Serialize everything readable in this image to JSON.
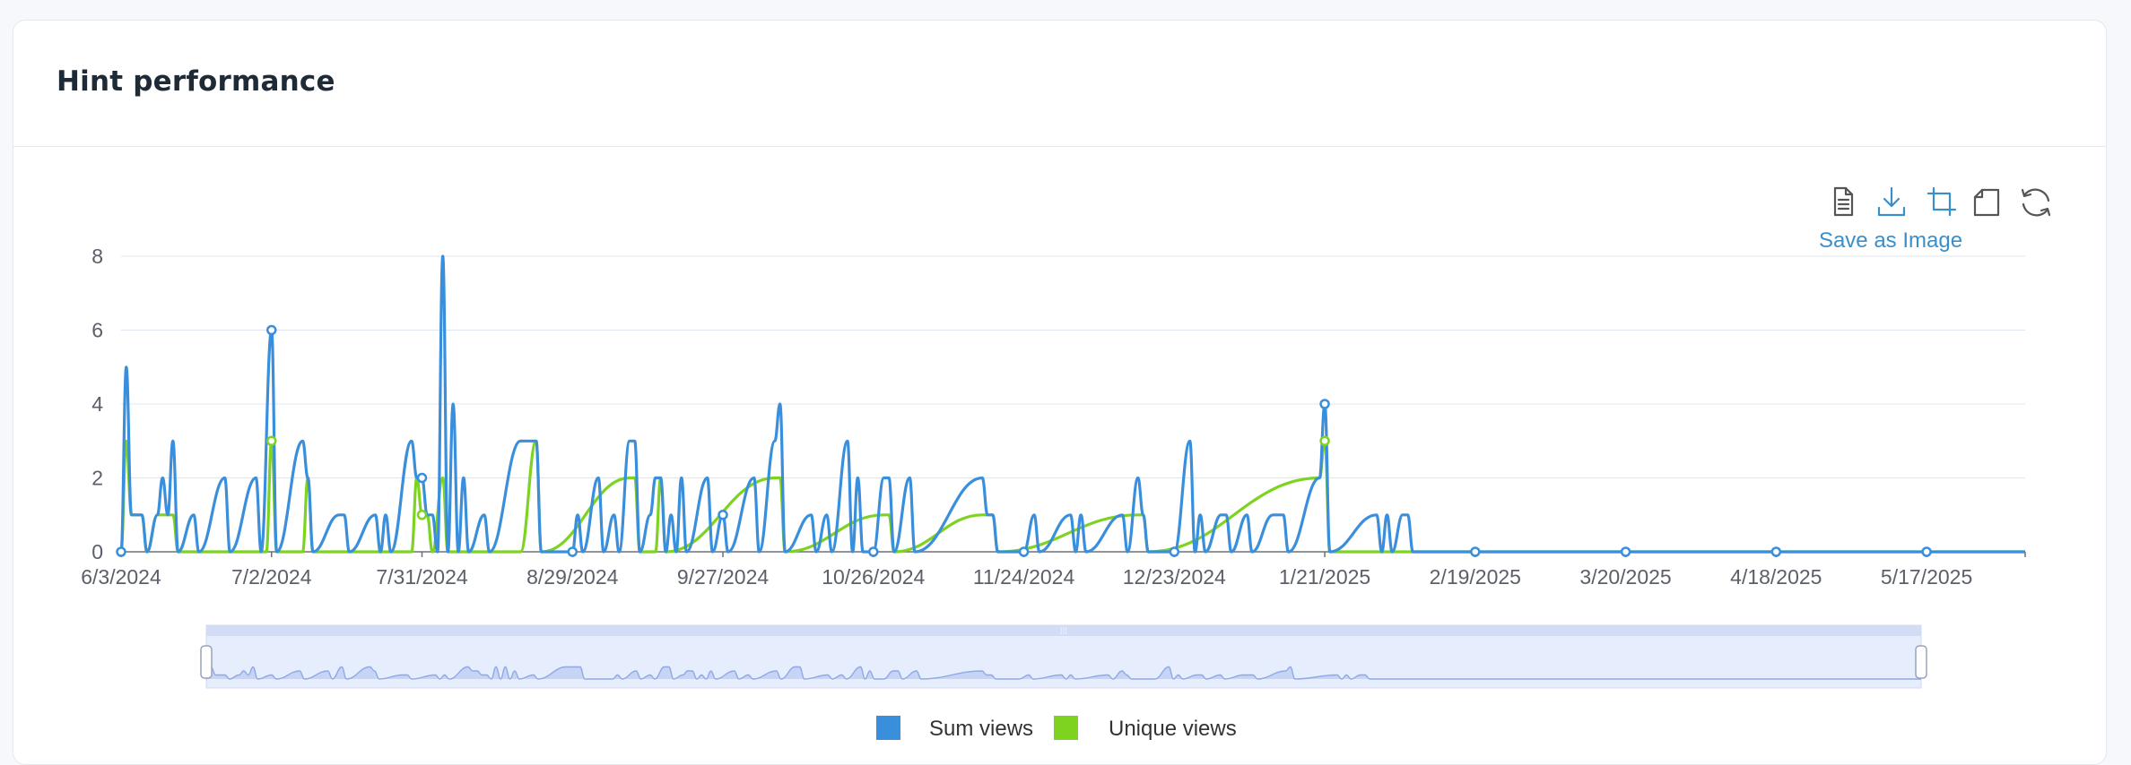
{
  "card": {
    "title": "Hint performance"
  },
  "toolbox": {
    "save_label": "Save as Image",
    "icons": [
      "data-view-icon",
      "download-icon",
      "zoom-select-icon",
      "zoom-back-icon",
      "restore-icon"
    ]
  },
  "colors": {
    "sum": "#3a8fdc",
    "unique": "#7ed321",
    "grid": "#e0e6f1"
  },
  "chart_data": {
    "type": "line",
    "title": "",
    "xlabel": "",
    "ylabel": "",
    "x_range": [
      "2024-06-03",
      "2025-06-05"
    ],
    "ylim": [
      0,
      8
    ],
    "yticks": [
      0,
      2,
      4,
      6,
      8
    ],
    "xticks": [
      {
        "date": "2024-06-03",
        "label": "6/3/2024"
      },
      {
        "date": "2024-07-02",
        "label": "7/2/2024"
      },
      {
        "date": "2024-07-31",
        "label": "7/31/2024"
      },
      {
        "date": "2024-08-29",
        "label": "8/29/2024"
      },
      {
        "date": "2024-09-27",
        "label": "9/27/2024"
      },
      {
        "date": "2024-10-26",
        "label": "10/26/2024"
      },
      {
        "date": "2024-11-24",
        "label": "11/24/2024"
      },
      {
        "date": "2024-12-23",
        "label": "12/23/2024"
      },
      {
        "date": "2025-01-21",
        "label": "1/21/2025"
      },
      {
        "date": "2025-02-19",
        "label": "2/19/2025"
      },
      {
        "date": "2025-03-20",
        "label": "3/20/2025"
      },
      {
        "date": "2025-04-18",
        "label": "4/18/2025"
      },
      {
        "date": "2025-05-17",
        "label": "5/17/2025"
      }
    ],
    "grid": true,
    "legend": "bottom-center",
    "series": [
      {
        "name": "Sum views",
        "points": [
          [
            "2024-06-03",
            0
          ],
          [
            "2024-06-04",
            5
          ],
          [
            "2024-06-05",
            1
          ],
          [
            "2024-06-06",
            1
          ],
          [
            "2024-06-07",
            1
          ],
          [
            "2024-06-08",
            0
          ],
          [
            "2024-06-10",
            1
          ],
          [
            "2024-06-11",
            2
          ],
          [
            "2024-06-12",
            1
          ],
          [
            "2024-06-13",
            3
          ],
          [
            "2024-06-14",
            0
          ],
          [
            "2024-06-17",
            1
          ],
          [
            "2024-06-18",
            0
          ],
          [
            "2024-06-23",
            2
          ],
          [
            "2024-06-24",
            0
          ],
          [
            "2024-06-29",
            2
          ],
          [
            "2024-06-30",
            0
          ],
          [
            "2024-07-02",
            6
          ],
          [
            "2024-07-03",
            0
          ],
          [
            "2024-07-08",
            3
          ],
          [
            "2024-07-09",
            2
          ],
          [
            "2024-07-10",
            0
          ],
          [
            "2024-07-15",
            1
          ],
          [
            "2024-07-16",
            1
          ],
          [
            "2024-07-17",
            0
          ],
          [
            "2024-07-22",
            1
          ],
          [
            "2024-07-23",
            0
          ],
          [
            "2024-07-24",
            1
          ],
          [
            "2024-07-25",
            0
          ],
          [
            "2024-07-29",
            3
          ],
          [
            "2024-07-30",
            2
          ],
          [
            "2024-07-31",
            2
          ],
          [
            "2024-08-01",
            1
          ],
          [
            "2024-08-02",
            1
          ],
          [
            "2024-08-03",
            0
          ],
          [
            "2024-08-04",
            8
          ],
          [
            "2024-08-05",
            0
          ],
          [
            "2024-08-06",
            4
          ],
          [
            "2024-08-07",
            0
          ],
          [
            "2024-08-08",
            2
          ],
          [
            "2024-08-09",
            0
          ],
          [
            "2024-08-12",
            1
          ],
          [
            "2024-08-13",
            0
          ],
          [
            "2024-08-19",
            3
          ],
          [
            "2024-08-20",
            3
          ],
          [
            "2024-08-21",
            3
          ],
          [
            "2024-08-22",
            3
          ],
          [
            "2024-08-23",
            0
          ],
          [
            "2024-08-29",
            0
          ],
          [
            "2024-08-30",
            1
          ],
          [
            "2024-08-31",
            0
          ],
          [
            "2024-09-03",
            2
          ],
          [
            "2024-09-04",
            0
          ],
          [
            "2024-09-06",
            1
          ],
          [
            "2024-09-07",
            0
          ],
          [
            "2024-09-09",
            3
          ],
          [
            "2024-09-10",
            3
          ],
          [
            "2024-09-11",
            0
          ],
          [
            "2024-09-13",
            1
          ],
          [
            "2024-09-14",
            2
          ],
          [
            "2024-09-15",
            2
          ],
          [
            "2024-09-16",
            0
          ],
          [
            "2024-09-17",
            1
          ],
          [
            "2024-09-18",
            0
          ],
          [
            "2024-09-19",
            2
          ],
          [
            "2024-09-20",
            0
          ],
          [
            "2024-09-24",
            2
          ],
          [
            "2024-09-25",
            0
          ],
          [
            "2024-09-27",
            1
          ],
          [
            "2024-09-28",
            0
          ],
          [
            "2024-10-03",
            2
          ],
          [
            "2024-10-04",
            0
          ],
          [
            "2024-10-07",
            3
          ],
          [
            "2024-10-08",
            4
          ],
          [
            "2024-10-09",
            0
          ],
          [
            "2024-10-14",
            1
          ],
          [
            "2024-10-15",
            0
          ],
          [
            "2024-10-17",
            1
          ],
          [
            "2024-10-18",
            0
          ],
          [
            "2024-10-21",
            3
          ],
          [
            "2024-10-22",
            0
          ],
          [
            "2024-10-23",
            2
          ],
          [
            "2024-10-24",
            0
          ],
          [
            "2024-10-26",
            0
          ],
          [
            "2024-10-28",
            2
          ],
          [
            "2024-10-29",
            2
          ],
          [
            "2024-10-30",
            0
          ],
          [
            "2024-11-02",
            2
          ],
          [
            "2024-11-03",
            0
          ],
          [
            "2024-11-16",
            2
          ],
          [
            "2024-11-17",
            1
          ],
          [
            "2024-11-18",
            1
          ],
          [
            "2024-11-19",
            0
          ],
          [
            "2024-11-24",
            0
          ],
          [
            "2024-11-26",
            1
          ],
          [
            "2024-11-27",
            0
          ],
          [
            "2024-12-03",
            1
          ],
          [
            "2024-12-04",
            0
          ],
          [
            "2024-12-05",
            1
          ],
          [
            "2024-12-06",
            0
          ],
          [
            "2024-12-13",
            1
          ],
          [
            "2024-12-14",
            0
          ],
          [
            "2024-12-16",
            2
          ],
          [
            "2024-12-17",
            1
          ],
          [
            "2024-12-18",
            0
          ],
          [
            "2024-12-23",
            0
          ],
          [
            "2024-12-26",
            3
          ],
          [
            "2024-12-27",
            0
          ],
          [
            "2024-12-28",
            1
          ],
          [
            "2024-12-29",
            0
          ],
          [
            "2025-01-01",
            1
          ],
          [
            "2025-01-02",
            1
          ],
          [
            "2025-01-03",
            0
          ],
          [
            "2025-01-06",
            1
          ],
          [
            "2025-01-07",
            0
          ],
          [
            "2025-01-11",
            1
          ],
          [
            "2025-01-12",
            1
          ],
          [
            "2025-01-13",
            1
          ],
          [
            "2025-01-14",
            0
          ],
          [
            "2025-01-20",
            2
          ],
          [
            "2025-01-21",
            4
          ],
          [
            "2025-01-22",
            0
          ],
          [
            "2025-01-31",
            1
          ],
          [
            "2025-02-01",
            0
          ],
          [
            "2025-02-02",
            1
          ],
          [
            "2025-02-03",
            0
          ],
          [
            "2025-02-05",
            1
          ],
          [
            "2025-02-06",
            1
          ],
          [
            "2025-02-07",
            0
          ],
          [
            "2025-02-19",
            0
          ],
          [
            "2025-03-20",
            0
          ],
          [
            "2025-04-18",
            0
          ],
          [
            "2025-05-17",
            0
          ],
          [
            "2025-06-05",
            0
          ]
        ]
      },
      {
        "name": "Unique views",
        "points": [
          [
            "2024-06-03",
            0
          ],
          [
            "2024-06-04",
            3
          ],
          [
            "2024-06-05",
            1
          ],
          [
            "2024-06-07",
            1
          ],
          [
            "2024-06-08",
            0
          ],
          [
            "2024-06-10",
            1
          ],
          [
            "2024-06-13",
            1
          ],
          [
            "2024-06-14",
            0
          ],
          [
            "2024-07-01",
            0
          ],
          [
            "2024-07-02",
            3
          ],
          [
            "2024-07-03",
            0
          ],
          [
            "2024-07-08",
            0
          ],
          [
            "2024-07-09",
            2
          ],
          [
            "2024-07-10",
            0
          ],
          [
            "2024-07-29",
            0
          ],
          [
            "2024-07-30",
            2
          ],
          [
            "2024-07-31",
            1
          ],
          [
            "2024-08-01",
            1
          ],
          [
            "2024-08-02",
            0
          ],
          [
            "2024-08-04",
            2
          ],
          [
            "2024-08-05",
            0
          ],
          [
            "2024-08-19",
            0
          ],
          [
            "2024-08-22",
            3
          ],
          [
            "2024-08-23",
            0
          ],
          [
            "2024-09-09",
            2
          ],
          [
            "2024-09-10",
            2
          ],
          [
            "2024-09-11",
            0
          ],
          [
            "2024-09-14",
            0
          ],
          [
            "2024-09-15",
            2
          ],
          [
            "2024-09-16",
            0
          ],
          [
            "2024-10-07",
            2
          ],
          [
            "2024-10-08",
            2
          ],
          [
            "2024-10-09",
            0
          ],
          [
            "2024-10-28",
            1
          ],
          [
            "2024-10-29",
            1
          ],
          [
            "2024-10-30",
            0
          ],
          [
            "2024-11-16",
            1
          ],
          [
            "2024-11-17",
            1
          ],
          [
            "2024-11-18",
            1
          ],
          [
            "2024-11-19",
            0
          ],
          [
            "2024-12-16",
            1
          ],
          [
            "2024-12-17",
            1
          ],
          [
            "2024-12-18",
            0
          ],
          [
            "2025-01-20",
            2
          ],
          [
            "2025-01-21",
            3
          ],
          [
            "2025-01-22",
            0
          ],
          [
            "2025-06-05",
            0
          ]
        ]
      }
    ],
    "markers": [
      "2024-06-03",
      "2024-07-02",
      "2024-07-31",
      "2024-08-29",
      "2024-09-27",
      "2024-10-26",
      "2024-11-24",
      "2024-12-23",
      "2025-01-21",
      "2025-02-19",
      "2025-03-20",
      "2025-04-18",
      "2025-05-17"
    ]
  }
}
